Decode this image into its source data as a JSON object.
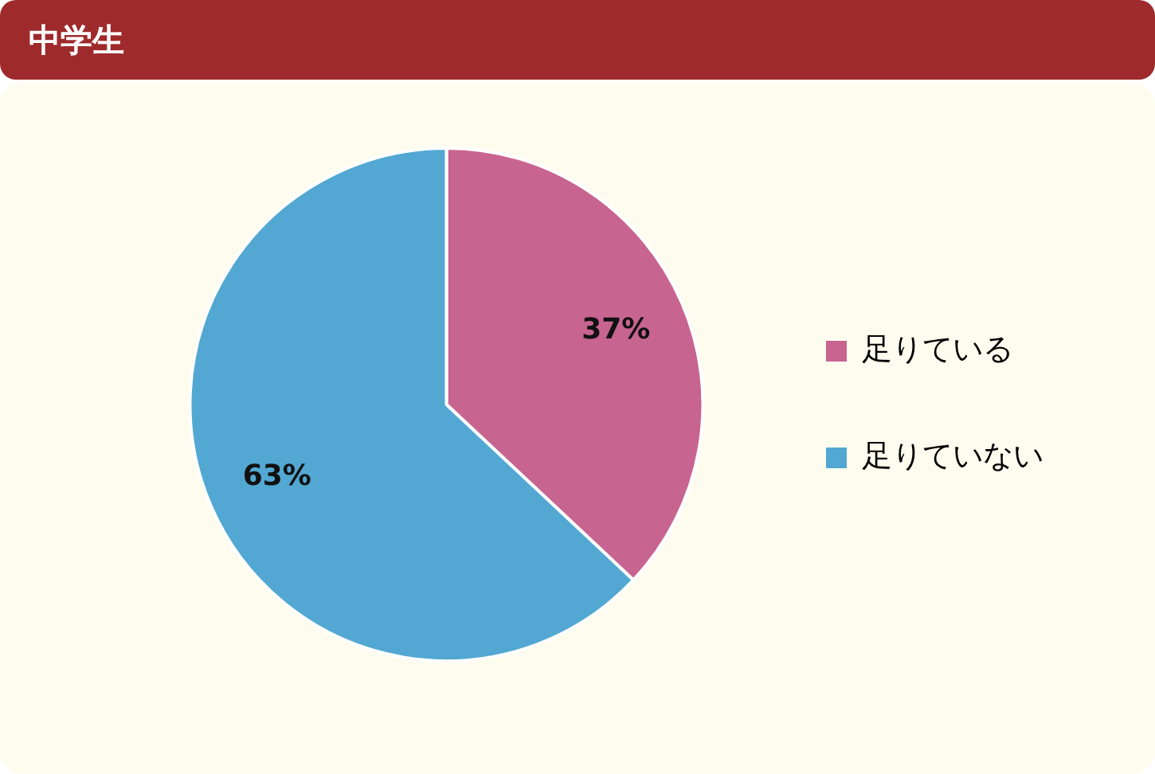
{
  "chart_data": {
    "type": "pie",
    "title": "中学生",
    "categories": [
      "足りている",
      "足りていない"
    ],
    "values": [
      37,
      63
    ],
    "colors": [
      "#c86490",
      "#52a8d2"
    ],
    "value_labels": [
      "37%",
      "63%"
    ],
    "legend": "right"
  }
}
